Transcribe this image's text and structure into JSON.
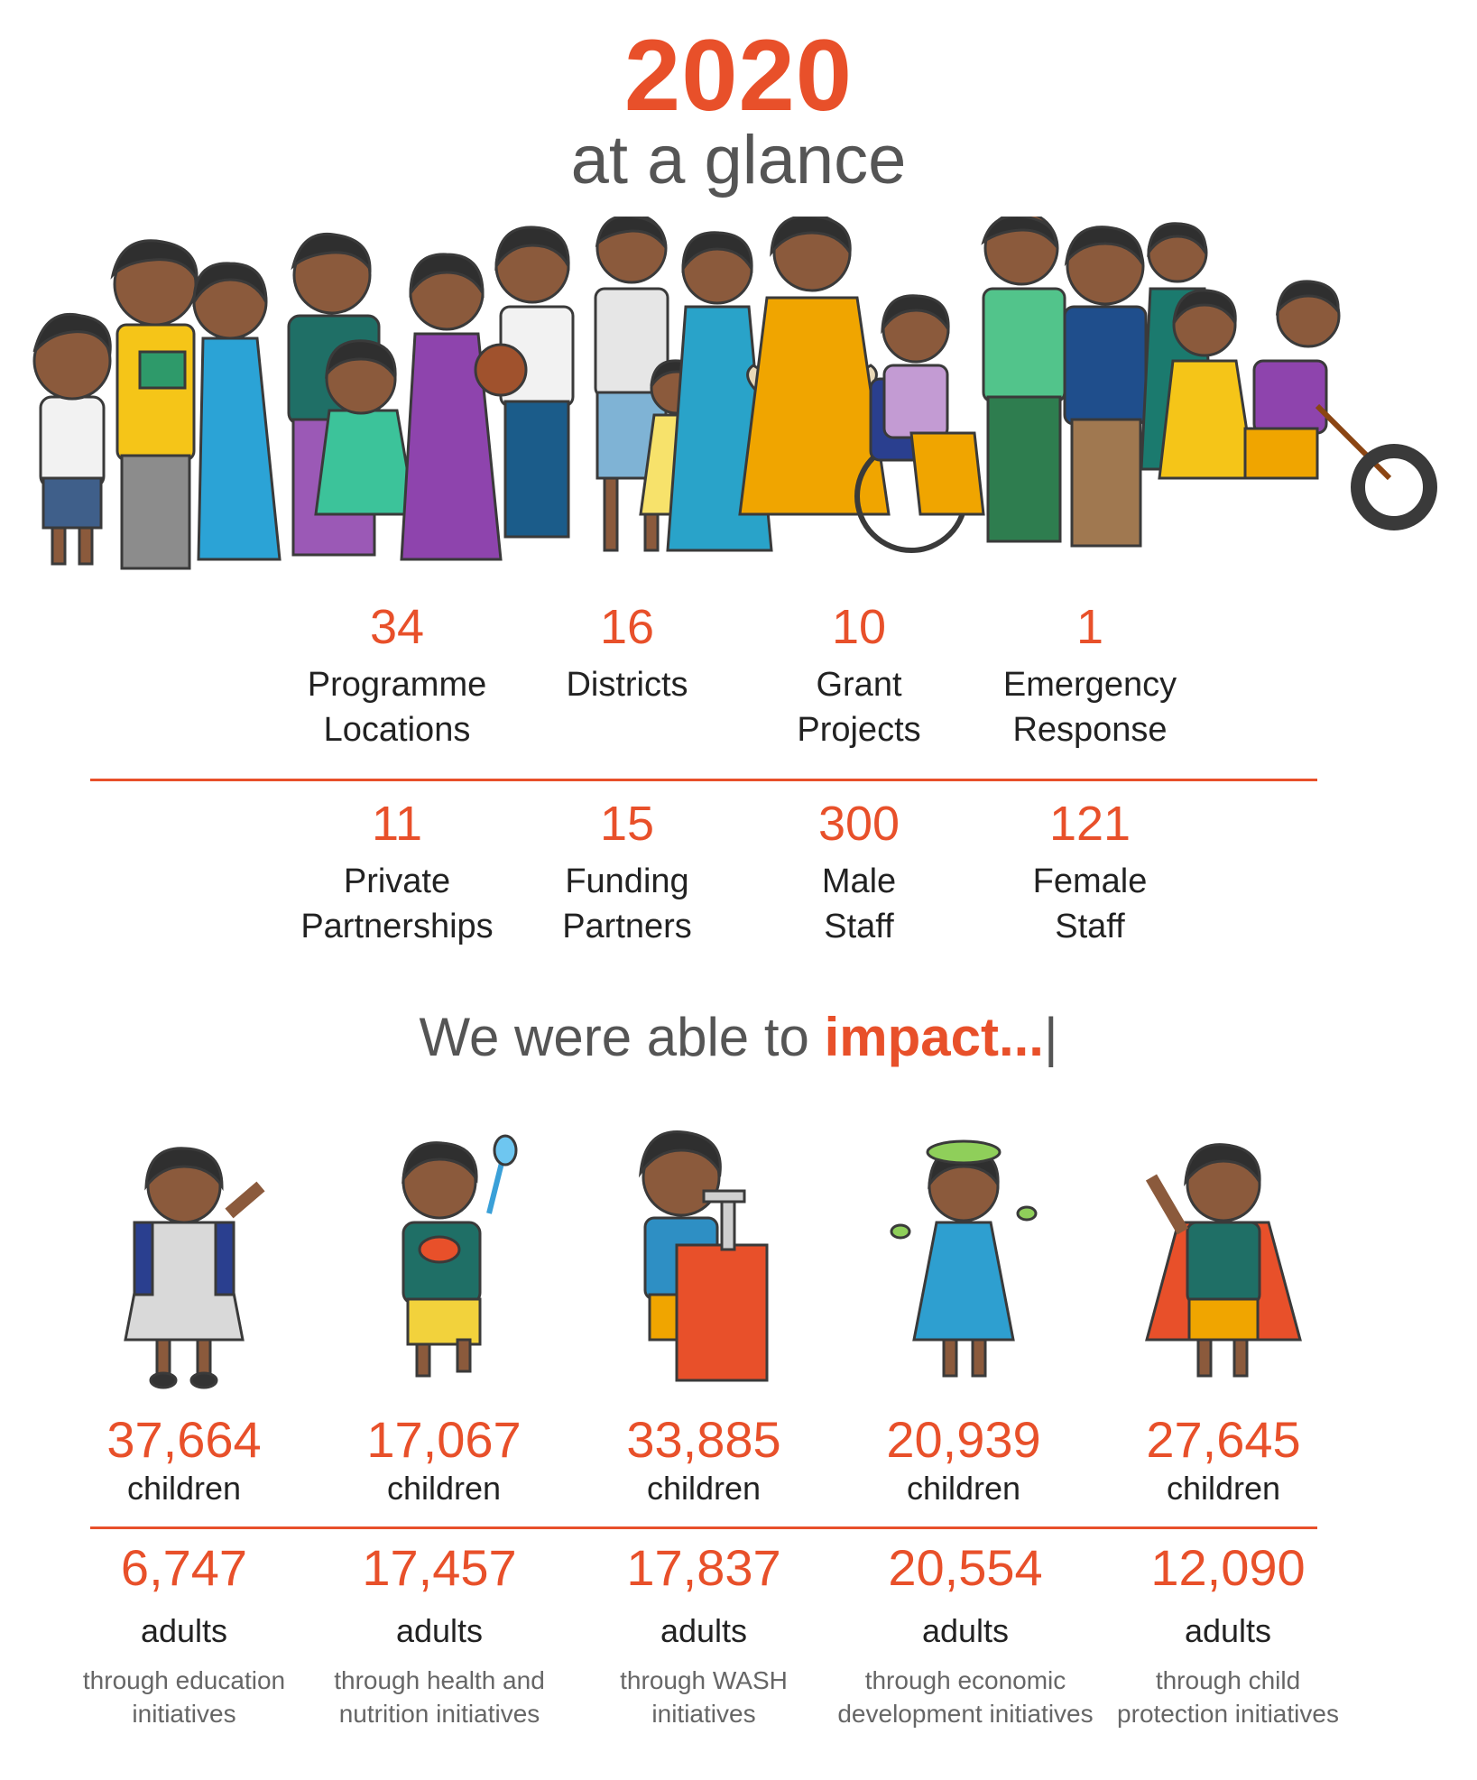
{
  "header": {
    "year": "2020",
    "subtitle": "at a glance"
  },
  "colors": {
    "accent": "#e8502a",
    "text": "#2b2b2b",
    "muted": "#666666"
  },
  "stats_top": [
    {
      "num": "34",
      "label1": "Programme",
      "label2": "Locations"
    },
    {
      "num": "16",
      "label1": "Districts",
      "label2": ""
    },
    {
      "num": "10",
      "label1": "Grant",
      "label2": "Projects"
    },
    {
      "num": "1",
      "label1": "Emergency",
      "label2": "Response"
    }
  ],
  "stats_bottom": [
    {
      "num": "11",
      "label1": "Private",
      "label2": "Partnerships"
    },
    {
      "num": "15",
      "label1": "Funding",
      "label2": "Partners"
    },
    {
      "num": "300",
      "label1": "Male",
      "label2": "Staff"
    },
    {
      "num": "121",
      "label1": "Female",
      "label2": "Staff"
    }
  ],
  "impact": {
    "prefix": "We were able to ",
    "emphasis": "impact...",
    "caret": "|"
  },
  "impact_items": [
    {
      "children": "37,664",
      "children_label": "children",
      "adults": "6,747",
      "adults_label": "adults",
      "desc1": "through education",
      "desc2": "initiatives"
    },
    {
      "children": "17,067",
      "children_label": "children",
      "adults": "17,457",
      "adults_label": "adults",
      "desc1": "through health and",
      "desc2": "nutrition initiatives"
    },
    {
      "children": "33,885",
      "children_label": "children",
      "adults": "17,837",
      "adults_label": "adults",
      "desc1": "through WASH",
      "desc2": "initiatives"
    },
    {
      "children": "20,939",
      "children_label": "children",
      "adults": "20,554",
      "adults_label": "adults",
      "desc1": "through economic",
      "desc2": "development initiatives"
    },
    {
      "children": "27,645",
      "children_label": "children",
      "adults": "12,090",
      "adults_label": "adults",
      "desc1": "through child",
      "desc2": "protection initiatives"
    }
  ]
}
